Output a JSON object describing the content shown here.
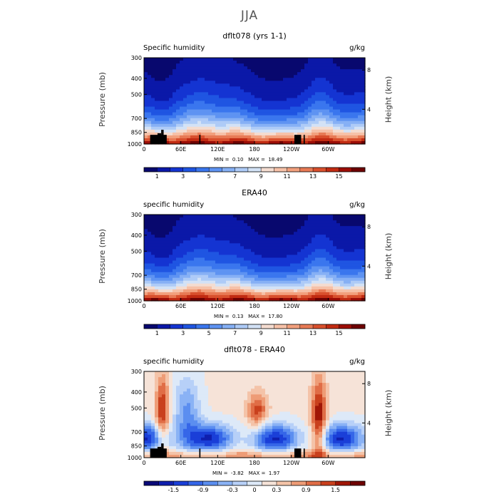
{
  "page": {
    "title": "JJA"
  },
  "chart_data": [
    {
      "type": "heatmap",
      "title": "dflt078 (yrs 1-1)",
      "field_label": "Specific humidity",
      "units": "g/kg",
      "ylabel": "Pressure (mb)",
      "ylabel_right": "Height (km)",
      "x_ticks": [
        "0",
        "60E",
        "120E",
        "180",
        "120W",
        "60W"
      ],
      "y_ticks": [
        "300",
        "400",
        "500",
        "700",
        "850",
        "1000"
      ],
      "y2_ticks": [
        "8",
        "4"
      ],
      "min_label": "MIN =",
      "min": "0.10",
      "max_label": "MAX =",
      "max": "18.49",
      "colorbar_labels": [
        "1",
        "3",
        "5",
        "7",
        "9",
        "11",
        "13",
        "15"
      ],
      "has_topography": true,
      "kind": "abs"
    },
    {
      "type": "heatmap",
      "title": "ERA40",
      "field_label": "specific humidity",
      "units": "g/kg",
      "ylabel": "Pressure (mb)",
      "ylabel_right": "Height (km)",
      "x_ticks": [
        "0",
        "60E",
        "120E",
        "180",
        "120W",
        "60W"
      ],
      "y_ticks": [
        "300",
        "400",
        "500",
        "700",
        "850",
        "1000"
      ],
      "y2_ticks": [
        "8",
        "4"
      ],
      "min_label": "MIN =",
      "min": "0.13",
      "max_label": "MAX =",
      "max": "17.80",
      "colorbar_labels": [
        "1",
        "3",
        "5",
        "7",
        "9",
        "11",
        "13",
        "15"
      ],
      "has_topography": false,
      "kind": "abs"
    },
    {
      "type": "heatmap",
      "title": "dflt078 - ERA40",
      "field_label": "specific humidity",
      "units": "g/kg",
      "ylabel": "Pressure (mb)",
      "ylabel_right": "Height (km)",
      "x_ticks": [
        "0",
        "60E",
        "120E",
        "180",
        "120W",
        "60W"
      ],
      "y_ticks": [
        "300",
        "400",
        "500",
        "700",
        "850",
        "1000"
      ],
      "y2_ticks": [
        "8",
        "4"
      ],
      "min_label": "MIN =",
      "min": "-3.82",
      "max_label": "MAX =",
      "max": "1.97",
      "colorbar_labels": [
        "-1.5",
        "-0.9",
        "-0.3",
        "0",
        "0.3",
        "0.9",
        "1.5"
      ],
      "has_topography": true,
      "kind": "diff"
    }
  ],
  "colors": {
    "abs_scale": [
      "#08086e",
      "#0b18a8",
      "#1434d2",
      "#1f55e2",
      "#3a76ee",
      "#5e93f2",
      "#86b0f5",
      "#aecbf7",
      "#d3e2f6",
      "#f4dcd0",
      "#f6c1a8",
      "#f2a07d",
      "#e87a55",
      "#d9502d",
      "#c22b12",
      "#9c0d06",
      "#6e0202"
    ],
    "diff_scale": [
      "#0a0a78",
      "#0f1fae",
      "#1a3fd8",
      "#3566e8",
      "#5b8ef0",
      "#8ab2f5",
      "#b7d0f8",
      "#dde9f8",
      "#f6e3d8",
      "#f4c3a8",
      "#ee9c76",
      "#e06d46",
      "#c9401d",
      "#a01606",
      "#6e0202"
    ],
    "topography": "#000000"
  }
}
